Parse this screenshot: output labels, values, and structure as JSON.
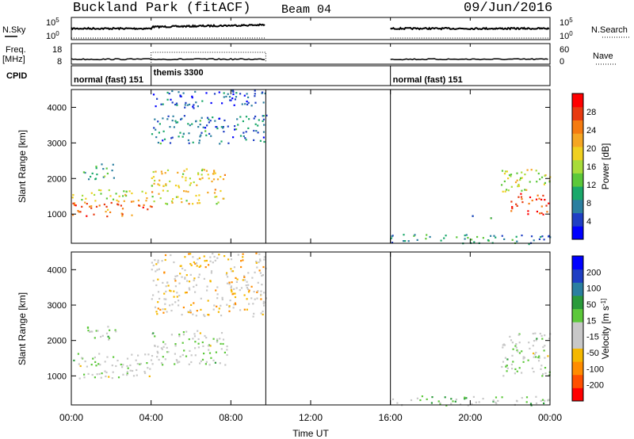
{
  "header": {
    "title": "Buckland Park (fitACF)",
    "beam": "Beam 04",
    "date": "09/Jun/2016"
  },
  "summary_panels": {
    "nsky_label": "N.Sky",
    "nsky_ticks": [
      "10^5",
      "10^0"
    ],
    "nsearch_label": "N.Search",
    "freq_label": "Freq.",
    "freq_unit": "[MHz]",
    "freq_ticks": [
      "18",
      "8"
    ],
    "nave_label": "Nave",
    "nave_ticks": [
      "60",
      "0"
    ],
    "cpid_label": "CPID",
    "cpid_segments": [
      {
        "name": "normal (fast) 151",
        "start_h": 0,
        "end_h": 4
      },
      {
        "name": "themis 3300",
        "start_h": 4,
        "end_h": 9.75
      },
      {
        "name": "normal (fast) 151",
        "start_h": 16,
        "end_h": 24
      }
    ]
  },
  "chart_data": [
    {
      "type": "heatmap",
      "title": "",
      "xlabel": "Time UT",
      "ylabel": "Slant Range [km]",
      "x_ticks": [
        "00:00",
        "04:00",
        "08:00",
        "12:00",
        "16:00",
        "20:00",
        "00:00"
      ],
      "xlim_hours": [
        0,
        24
      ],
      "y_ticks": [
        1000,
        2000,
        3000,
        4000
      ],
      "ylim": [
        180,
        4500
      ],
      "colorbar": {
        "label": "Power [dB]",
        "ticks": [
          "28",
          "24",
          "20",
          "16",
          "12",
          "8",
          "4"
        ],
        "range": [
          0,
          30
        ],
        "colors": [
          "#0000ff",
          "#1f3fc4",
          "#2b7fa0",
          "#1aa86a",
          "#5cc83a",
          "#a8dc3a",
          "#f0d020",
          "#f5a623",
          "#f57b10",
          "#e83a10",
          "#ff0000"
        ]
      },
      "data_gaps_hours": [
        [
          9.75,
          16
        ]
      ],
      "echo_regions": [
        {
          "start_h": 0,
          "end_h": 4,
          "range_lo": 950,
          "range_hi": 1400,
          "power": 24
        },
        {
          "start_h": 0,
          "end_h": 4,
          "range_lo": 1400,
          "range_hi": 1700,
          "power": 16
        },
        {
          "start_h": 0.5,
          "end_h": 2.2,
          "range_lo": 2000,
          "range_hi": 2450,
          "power": 10
        },
        {
          "start_h": 4,
          "end_h": 7.8,
          "range_lo": 1300,
          "range_hi": 2300,
          "power": 18
        },
        {
          "start_h": 4,
          "end_h": 9.75,
          "range_lo": 3000,
          "range_hi": 3800,
          "power": 6
        },
        {
          "start_h": 4,
          "end_h": 9.75,
          "range_lo": 4000,
          "range_hi": 4500,
          "power": 4
        },
        {
          "start_h": 16,
          "end_h": 24,
          "range_lo": 180,
          "range_hi": 450,
          "power": 8
        },
        {
          "start_h": 22,
          "end_h": 24,
          "range_lo": 1000,
          "range_hi": 1600,
          "power": 26
        },
        {
          "start_h": 21.5,
          "end_h": 24,
          "range_lo": 1600,
          "range_hi": 2300,
          "power": 16
        },
        {
          "start_h": 19.8,
          "end_h": 21.2,
          "range_lo": 880,
          "range_hi": 1000,
          "power": 8
        }
      ]
    },
    {
      "type": "heatmap",
      "title": "",
      "xlabel": "Time UT",
      "ylabel": "Slant Range [km]",
      "x_ticks": [
        "00:00",
        "04:00",
        "08:00",
        "12:00",
        "16:00",
        "20:00",
        "00:00"
      ],
      "xlim_hours": [
        0,
        24
      ],
      "y_ticks": [
        1000,
        2000,
        3000,
        4000
      ],
      "ylim": [
        180,
        4500
      ],
      "colorbar": {
        "label": "Velocity [m s^-1]",
        "ticks": [
          "200",
          "100",
          "50",
          "15",
          "-15",
          "-50",
          "-100",
          "-200"
        ],
        "range": [
          -250,
          250
        ],
        "colors": [
          "#ff0000",
          "#ff5000",
          "#ff8c00",
          "#f5b800",
          "#c8c8c8",
          "#c8c8c8",
          "#5cc83a",
          "#2a9a3a",
          "#2b7fa0",
          "#1f3fc4",
          "#0000ff"
        ]
      },
      "data_gaps_hours": [
        [
          9.75,
          16
        ]
      ],
      "echo_regions": [
        {
          "start_h": 0,
          "end_h": 4,
          "range_lo": 950,
          "range_hi": 1650,
          "velocity": 0
        },
        {
          "start_h": 0.5,
          "end_h": 2.2,
          "range_lo": 2000,
          "range_hi": 2450,
          "velocity": 0
        },
        {
          "start_h": 4,
          "end_h": 7.8,
          "range_lo": 1300,
          "range_hi": 2300,
          "velocity": 0
        },
        {
          "start_h": 4,
          "end_h": 9.75,
          "range_lo": 2700,
          "range_hi": 4500,
          "velocity": -60
        },
        {
          "start_h": 16,
          "end_h": 24,
          "range_lo": 180,
          "range_hi": 450,
          "velocity": 20
        },
        {
          "start_h": 21.5,
          "end_h": 24,
          "range_lo": 1000,
          "range_hi": 2300,
          "velocity": 0
        }
      ]
    }
  ]
}
